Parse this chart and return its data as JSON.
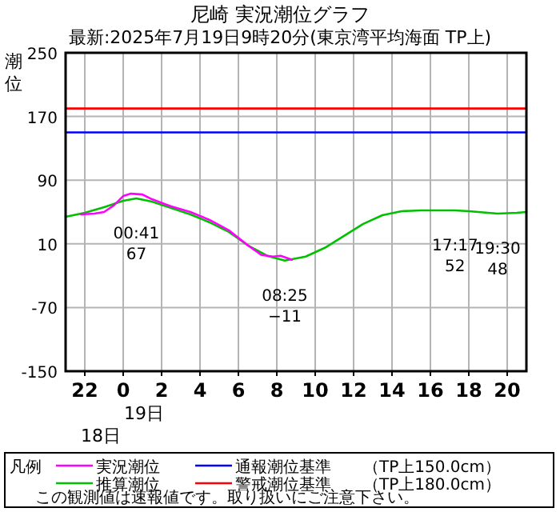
{
  "chart_data": {
    "type": "line",
    "title": "尼崎 実況潮位グラフ",
    "subtitle": "最新:2025年7月19日9時20分(東京湾平均海面 TP上)",
    "ylabel": "潮位",
    "legend_title": "凡例",
    "legend": "bottom",
    "grid": true,
    "xlim": [
      "2025-07-18T21:00",
      "2025-07-19T21:00"
    ],
    "xticks": [
      {
        "value": "2025-07-18T22:00",
        "label": "22"
      },
      {
        "value": "2025-07-19T00:00",
        "label": "0"
      },
      {
        "value": "2025-07-19T02:00",
        "label": "2"
      },
      {
        "value": "2025-07-19T04:00",
        "label": "4"
      },
      {
        "value": "2025-07-19T06:00",
        "label": "6"
      },
      {
        "value": "2025-07-19T08:00",
        "label": "8"
      },
      {
        "value": "2025-07-19T10:00",
        "label": "10"
      },
      {
        "value": "2025-07-19T12:00",
        "label": "12"
      },
      {
        "value": "2025-07-19T14:00",
        "label": "14"
      },
      {
        "value": "2025-07-19T16:00",
        "label": "16"
      },
      {
        "value": "2025-07-19T18:00",
        "label": "18"
      },
      {
        "value": "2025-07-19T20:00",
        "label": "20"
      }
    ],
    "ylim": [
      -150,
      250
    ],
    "yticks": [
      250,
      170,
      90,
      10,
      -70,
      -150
    ],
    "series": [
      {
        "name": "実況潮位",
        "color": "#ff00ff",
        "x": [
          "2025-07-18T21:48",
          "2025-07-18T22:30",
          "2025-07-18T23:00",
          "2025-07-18T23:30",
          "2025-07-19T00:00",
          "2025-07-19T00:24",
          "2025-07-19T01:00",
          "2025-07-19T01:30",
          "2025-07-19T02:30",
          "2025-07-19T03:30",
          "2025-07-19T04:30",
          "2025-07-19T05:30",
          "2025-07-19T06:30",
          "2025-07-19T07:12",
          "2025-07-19T07:48",
          "2025-07-19T08:12",
          "2025-07-19T08:48"
        ],
        "values": [
          47,
          48,
          50,
          58,
          70,
          73,
          72,
          66,
          57,
          50,
          40,
          27,
          8,
          -4,
          -6,
          -5,
          -10
        ]
      },
      {
        "name": "推算潮位",
        "color": "#00c000",
        "x": [
          "2025-07-18T21:00",
          "2025-07-18T22:00",
          "2025-07-18T23:00",
          "2025-07-19T00:00",
          "2025-07-19T00:41",
          "2025-07-19T01:30",
          "2025-07-19T02:30",
          "2025-07-19T03:30",
          "2025-07-19T04:30",
          "2025-07-19T05:30",
          "2025-07-19T06:30",
          "2025-07-19T07:30",
          "2025-07-19T08:25",
          "2025-07-19T09:30",
          "2025-07-19T10:30",
          "2025-07-19T11:30",
          "2025-07-19T12:30",
          "2025-07-19T13:30",
          "2025-07-19T14:30",
          "2025-07-19T15:30",
          "2025-07-19T16:30",
          "2025-07-19T17:17",
          "2025-07-19T18:00",
          "2025-07-19T19:30",
          "2025-07-19T20:30",
          "2025-07-19T21:00"
        ],
        "values": [
          44,
          49,
          56,
          64,
          67,
          63,
          55,
          47,
          37,
          25,
          8,
          -5,
          -11,
          -6,
          5,
          20,
          35,
          46,
          51,
          52,
          52,
          52,
          51,
          48,
          49,
          50
        ]
      }
    ],
    "ref_lines": [
      {
        "axis": "y",
        "value": 150,
        "label": "通報潮位基準　　（TP上150.0cm）",
        "color": "#0000ff"
      },
      {
        "axis": "y",
        "value": 180,
        "label": "警戒潮位基準　　（TP上180.0cm）",
        "color": "#ff0000"
      }
    ],
    "annotations": [
      {
        "text": "00:41\n67",
        "x": "2025-07-19T00:41",
        "y": 67
      },
      {
        "text": "08:25\n−11",
        "x": "2025-07-19T08:25",
        "y": -11
      },
      {
        "text": "17:17\n52",
        "x": "2025-07-19T17:17",
        "y": 52
      },
      {
        "text": "19:30\n48",
        "x": "2025-07-19T19:30",
        "y": 48
      },
      "19日",
      "18日",
      "この観測値は速報値です。取り扱いにご注意下さい。"
    ]
  }
}
